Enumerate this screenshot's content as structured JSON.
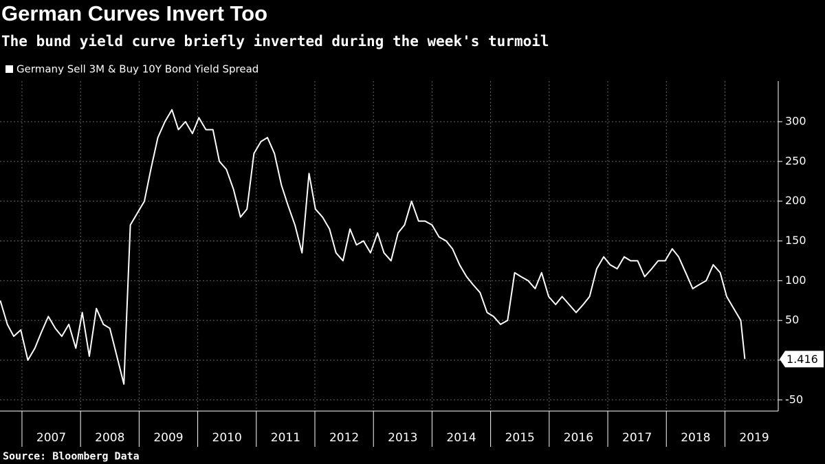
{
  "chart_data": {
    "type": "line",
    "title": "German Curves Invert Too",
    "subtitle": "The bund yield curve briefly inverted during the week's turmoil",
    "source": "Source: Bloomberg Data",
    "x": [
      2006.63,
      2006.75,
      2006.86,
      2006.98,
      2007.1,
      2007.22,
      2007.33,
      2007.45,
      2007.57,
      2007.68,
      2007.8,
      2007.92,
      2008.03,
      2008.15,
      2008.27,
      2008.39,
      2008.5,
      2008.62,
      2008.74,
      2008.85,
      2008.97,
      2009.09,
      2009.2,
      2009.32,
      2009.44,
      2009.56,
      2009.67,
      2009.79,
      2009.91,
      2010.02,
      2010.14,
      2010.26,
      2010.37,
      2010.49,
      2010.61,
      2010.73,
      2010.84,
      2010.96,
      2011.08,
      2011.19,
      2011.31,
      2011.43,
      2011.54,
      2011.66,
      2011.78,
      2011.9,
      2012.01,
      2012.13,
      2012.25,
      2012.36,
      2012.48,
      2012.6,
      2012.71,
      2012.83,
      2012.95,
      2013.07,
      2013.18,
      2013.3,
      2013.42,
      2013.53,
      2013.65,
      2013.77,
      2013.88,
      2014.0,
      2014.12,
      2014.24,
      2014.35,
      2014.47,
      2014.59,
      2014.7,
      2014.82,
      2014.94,
      2015.05,
      2015.17,
      2015.29,
      2015.41,
      2015.52,
      2015.64,
      2015.76,
      2015.87,
      2015.99,
      2016.11,
      2016.22,
      2016.34,
      2016.46,
      2016.58,
      2016.69,
      2016.81,
      2016.93,
      2017.04,
      2017.16,
      2017.28,
      2017.39,
      2017.51,
      2017.63,
      2017.75,
      2017.86,
      2017.98,
      2018.1,
      2018.21,
      2018.33,
      2018.45,
      2018.56,
      2018.68,
      2018.8,
      2018.92,
      2019.03,
      2019.15,
      2019.27,
      2019.34
    ],
    "series": [
      {
        "name": "Germany Sell 3M & Buy 10Y Bond Yield Spread",
        "color": "#ffffff",
        "values": [
          75,
          45,
          30,
          38,
          0,
          15,
          35,
          55,
          40,
          30,
          45,
          15,
          60,
          5,
          65,
          45,
          40,
          5,
          -30,
          170,
          185,
          200,
          240,
          280,
          300,
          315,
          290,
          300,
          285,
          305,
          290,
          290,
          250,
          240,
          215,
          180,
          190,
          260,
          275,
          280,
          260,
          220,
          195,
          170,
          135,
          235,
          190,
          180,
          165,
          135,
          125,
          165,
          145,
          150,
          135,
          160,
          135,
          125,
          160,
          170,
          200,
          175,
          175,
          170,
          155,
          150,
          140,
          120,
          105,
          95,
          85,
          60,
          55,
          45,
          50,
          110,
          105,
          100,
          90,
          110,
          80,
          70,
          80,
          70,
          60,
          70,
          80,
          115,
          130,
          120,
          115,
          130,
          125,
          125,
          105,
          115,
          125,
          125,
          140,
          130,
          110,
          90,
          95,
          100,
          120,
          110,
          80,
          65,
          50,
          1.416
        ]
      }
    ],
    "xlim": [
      2006.625,
      2019.91
    ],
    "xticks": [
      2007,
      2008,
      2009,
      2010,
      2011,
      2012,
      2013,
      2014,
      2015,
      2016,
      2017,
      2018,
      2019
    ],
    "ylim": [
      -64,
      351
    ],
    "yticks": [
      -50,
      0,
      50,
      100,
      150,
      200,
      250,
      300
    ],
    "grid": true
  }
}
